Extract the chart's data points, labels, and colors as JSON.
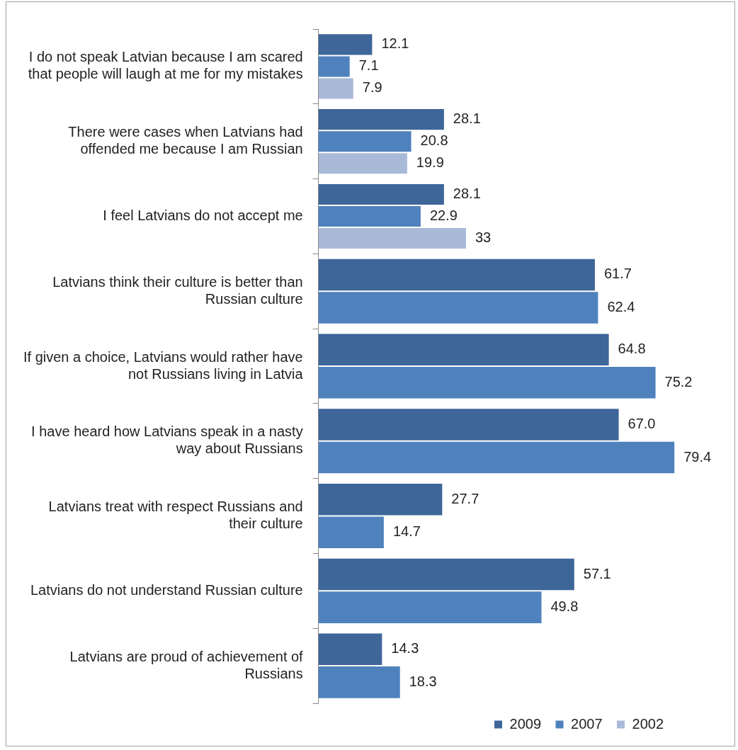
{
  "chart_data": {
    "type": "bar",
    "orientation": "horizontal",
    "categories": [
      "I do not speak Latvian because I am scared that people will laugh at me for my mistakes",
      "There were cases when Latvians had offended me because I am Russian",
      "I feel Latvians do not accept me",
      "Latvians think their culture is better than Russian culture",
      "If given a choice, Latvians would rather have not Russians living in Latvia",
      "I have heard how Latvians speak in a nasty way about Russians",
      "Latvians treat with respect Russians and their culture",
      "Latvians do not understand Russian culture",
      "Latvians are proud of achievement of Russians"
    ],
    "series": [
      {
        "name": "2009",
        "color": "#3e6699",
        "values": [
          12.1,
          28.1,
          28.1,
          61.7,
          64.8,
          67.0,
          27.7,
          57.1,
          14.3
        ],
        "value_labels": [
          "12.1",
          "28.1",
          "28.1",
          "61.7",
          "64.8",
          "67.0",
          "27.7",
          "57.1",
          "14.3"
        ]
      },
      {
        "name": "2007",
        "color": "#4f81bd",
        "values": [
          7.1,
          20.8,
          22.9,
          62.4,
          75.2,
          79.4,
          14.7,
          49.8,
          18.3
        ],
        "value_labels": [
          "7.1",
          "20.8",
          "22.9",
          "62.4",
          "75.2",
          "79.4",
          "14.7",
          "49.8",
          "18.3"
        ]
      },
      {
        "name": "2002",
        "color": "#a9bad8",
        "values": [
          7.9,
          19.9,
          33,
          null,
          null,
          null,
          null,
          null,
          null
        ],
        "value_labels": [
          "7.9",
          "19.9",
          "33",
          null,
          null,
          null,
          null,
          null,
          null
        ]
      }
    ],
    "tick_labels": "y",
    "legend": "bottom"
  }
}
